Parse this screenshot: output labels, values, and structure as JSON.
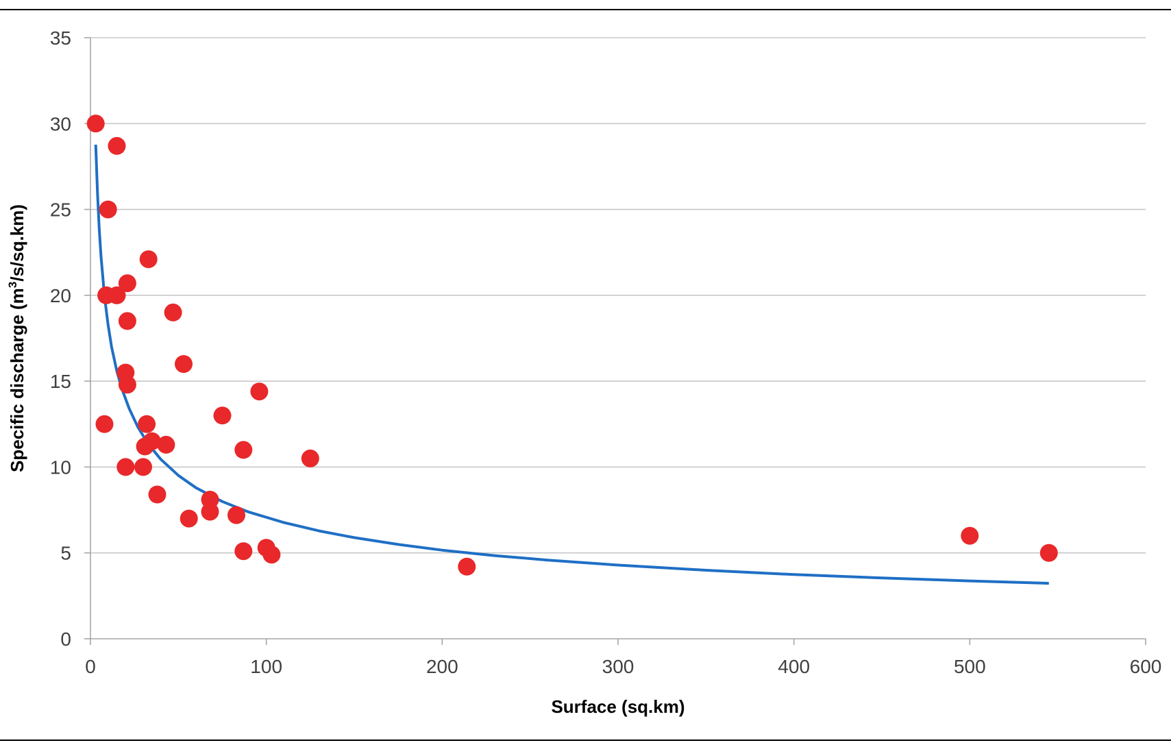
{
  "chart_data": {
    "type": "scatter",
    "title": "",
    "xlabel": "Surface (sq.km)",
    "ylabel": {
      "before_sup": "Specific discharge (m",
      "sup": "3",
      "after_sup": "/s/sq.km)"
    },
    "xlim": [
      0,
      600
    ],
    "ylim": [
      0,
      35
    ],
    "x_ticks": [
      "0",
      "100",
      "200",
      "300",
      "400",
      "500",
      "600"
    ],
    "y_ticks": [
      "0",
      "5",
      "10",
      "15",
      "20",
      "25",
      "30",
      "35"
    ],
    "grid": "horizontal",
    "legend": "none",
    "colors": {
      "points": "#e8282a",
      "trend": "#1f6fc5",
      "grid": "#c8c8c8"
    },
    "series": [
      {
        "type": "scatter",
        "x": [
          3,
          15,
          10,
          9,
          15,
          33,
          21,
          21,
          47,
          53,
          20,
          21,
          96,
          8,
          32,
          75,
          31,
          35,
          43,
          87,
          125,
          20,
          30,
          38,
          68,
          56,
          68,
          83,
          87,
          100,
          103,
          214,
          500,
          545
        ],
        "y": [
          30,
          28.7,
          25,
          20,
          20,
          22.1,
          20.7,
          18.5,
          19,
          16,
          15.5,
          14.8,
          14.4,
          12.5,
          12.5,
          13,
          11.2,
          11.5,
          11.3,
          11,
          10.5,
          10,
          10,
          8.4,
          8.1,
          7,
          7.4,
          7.2,
          5.1,
          5.3,
          4.9,
          4.2,
          6,
          5
        ]
      },
      {
        "type": "line",
        "x": [
          3,
          4,
          5,
          6,
          8,
          10,
          12,
          15,
          18,
          22,
          27,
          33,
          40,
          50,
          60,
          75,
          90,
          110,
          130,
          150,
          175,
          200,
          230,
          260,
          300,
          350,
          400,
          450,
          500,
          545
        ],
        "y": [
          28.77,
          25.94,
          23.88,
          22.28,
          19.95,
          18.29,
          17.0,
          15.59,
          14.52,
          13.41,
          12.32,
          11.32,
          10.45,
          9.51,
          8.79,
          7.99,
          7.38,
          6.77,
          6.28,
          5.89,
          5.49,
          5.16,
          4.84,
          4.58,
          4.29,
          3.99,
          3.74,
          3.54,
          3.37,
          3.23
        ]
      }
    ]
  }
}
